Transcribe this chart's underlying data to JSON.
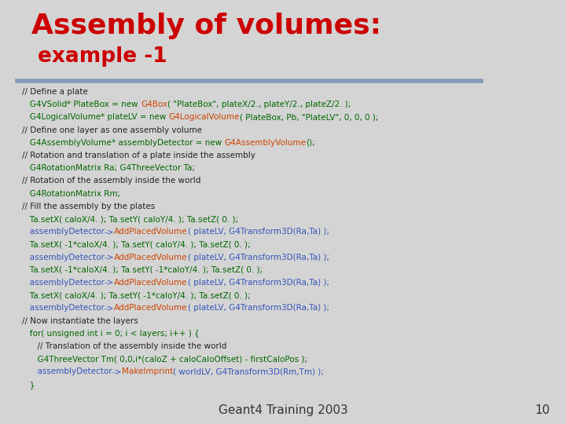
{
  "title_line1": "Assembly of volumes:",
  "title_line2": "example -1",
  "title_color": "#cc0000",
  "bg_color": "#d4d4d4",
  "header_bar_color": "#8899bb",
  "footer_text": "Geant4 Training 2003",
  "footer_number": "10",
  "code_lines": [
    {
      "parts": [
        {
          "t": "// Define a plate",
          "c": "#222222"
        }
      ],
      "indent": 0
    },
    {
      "parts": [
        {
          "t": "   G4VSolid",
          "c": "#006600"
        },
        {
          "t": "* PlateBox = new ",
          "c": "#006600"
        },
        {
          "t": "G4Box",
          "c": "#cc4400"
        },
        {
          "t": "( \"PlateBox\", plateX/2., plateY/2., plateZ/2. );",
          "c": "#006600"
        }
      ],
      "indent": 0
    },
    {
      "parts": [
        {
          "t": "   G4LogicalVolume",
          "c": "#006600"
        },
        {
          "t": "* plateLV = new ",
          "c": "#006600"
        },
        {
          "t": "G4LogicalVolume",
          "c": "#cc4400"
        },
        {
          "t": "( PlateBox, Pb, \"PlateLV\", 0, 0, 0 );",
          "c": "#006600"
        }
      ],
      "indent": 0
    },
    {
      "parts": [
        {
          "t": "// Define one layer as one assembly volume",
          "c": "#222222"
        }
      ],
      "indent": 0
    },
    {
      "parts": [
        {
          "t": "   G4AssemblyVolume",
          "c": "#006600"
        },
        {
          "t": "* assemblyDetector = new ",
          "c": "#006600"
        },
        {
          "t": "G4AssemblyVolume",
          "c": "#cc4400"
        },
        {
          "t": "();",
          "c": "#006600"
        }
      ],
      "indent": 0
    },
    {
      "parts": [
        {
          "t": "// Rotation and translation of a plate inside the assembly",
          "c": "#222222"
        }
      ],
      "indent": 0
    },
    {
      "parts": [
        {
          "t": "   G4RotationMatrix Ra; G4ThreeVector Ta;",
          "c": "#006600"
        }
      ],
      "indent": 0
    },
    {
      "parts": [
        {
          "t": "// Rotation of the assembly inside the world",
          "c": "#222222"
        }
      ],
      "indent": 0
    },
    {
      "parts": [
        {
          "t": "   G4RotationMatrix Rm;",
          "c": "#006600"
        }
      ],
      "indent": 0
    },
    {
      "parts": [
        {
          "t": "// Fill the assembly by the plates",
          "c": "#222222"
        }
      ],
      "indent": 0
    },
    {
      "parts": [
        {
          "t": "   Ta.setX( caloX/4. ); Ta.setY( caloY/4. ); Ta.setZ( 0. );",
          "c": "#006600"
        }
      ],
      "indent": 0
    },
    {
      "parts": [
        {
          "t": "   assemblyDetector",
          "c": "#3355bb"
        },
        {
          "t": "->",
          "c": "#3355bb"
        },
        {
          "t": "AddPlacedVolume",
          "c": "#cc4400"
        },
        {
          "t": "( plateLV, G4Transform3D(Ra,Ta) );",
          "c": "#3355bb"
        }
      ],
      "indent": 0
    },
    {
      "parts": [
        {
          "t": "   Ta.setX( -1*caloX/4. ); Ta.setY( caloY/4. ); Ta.setZ( 0. );",
          "c": "#006600"
        }
      ],
      "indent": 0
    },
    {
      "parts": [
        {
          "t": "   assemblyDetector",
          "c": "#3355bb"
        },
        {
          "t": "->",
          "c": "#3355bb"
        },
        {
          "t": "AddPlacedVolume",
          "c": "#cc4400"
        },
        {
          "t": "( plateLV, G4Transform3D(Ra,Ta) );",
          "c": "#3355bb"
        }
      ],
      "indent": 0
    },
    {
      "parts": [
        {
          "t": "   Ta.setX( -1*caloX/4. ); Ta.setY( -1*caloY/4. ); Ta.setZ( 0. );",
          "c": "#006600"
        }
      ],
      "indent": 0
    },
    {
      "parts": [
        {
          "t": "   assemblyDetector",
          "c": "#3355bb"
        },
        {
          "t": "->",
          "c": "#3355bb"
        },
        {
          "t": "AddPlacedVolume",
          "c": "#cc4400"
        },
        {
          "t": "( plateLV, G4Transform3D(Ra,Ta) );",
          "c": "#3355bb"
        }
      ],
      "indent": 0
    },
    {
      "parts": [
        {
          "t": "   Ta.setX( caloX/4. ); Ta.setY( -1*caloY/4. ); Ta.setZ( 0. );",
          "c": "#006600"
        }
      ],
      "indent": 0
    },
    {
      "parts": [
        {
          "t": "   assemblyDetector",
          "c": "#3355bb"
        },
        {
          "t": "->",
          "c": "#3355bb"
        },
        {
          "t": "AddPlacedVolume",
          "c": "#cc4400"
        },
        {
          "t": "( plateLV, G4Transform3D(Ra,Ta) );",
          "c": "#3355bb"
        }
      ],
      "indent": 0
    },
    {
      "parts": [
        {
          "t": "// Now instantiate the layers",
          "c": "#222222"
        }
      ],
      "indent": 0
    },
    {
      "parts": [
        {
          "t": "   for( unsigned int i = 0; i < layers; i++ ) {",
          "c": "#006600"
        }
      ],
      "indent": 0
    },
    {
      "parts": [
        {
          "t": "      // Translation of the assembly inside the world",
          "c": "#222222"
        }
      ],
      "indent": 0
    },
    {
      "parts": [
        {
          "t": "      G4ThreeVector Tm( 0,0,i*(caloZ + caloCaloOffset) - firstCaloPos );",
          "c": "#006600"
        }
      ],
      "indent": 0
    },
    {
      "parts": [
        {
          "t": "      assemblyDetector",
          "c": "#3355bb"
        },
        {
          "t": "->",
          "c": "#3355bb"
        },
        {
          "t": "MakeImprint",
          "c": "#cc4400"
        },
        {
          "t": "( worldLV, G4Transform3D(Rm,Tm) );",
          "c": "#3355bb"
        }
      ],
      "indent": 0
    },
    {
      "parts": [
        {
          "t": "   }",
          "c": "#006600"
        }
      ],
      "indent": 0
    }
  ]
}
